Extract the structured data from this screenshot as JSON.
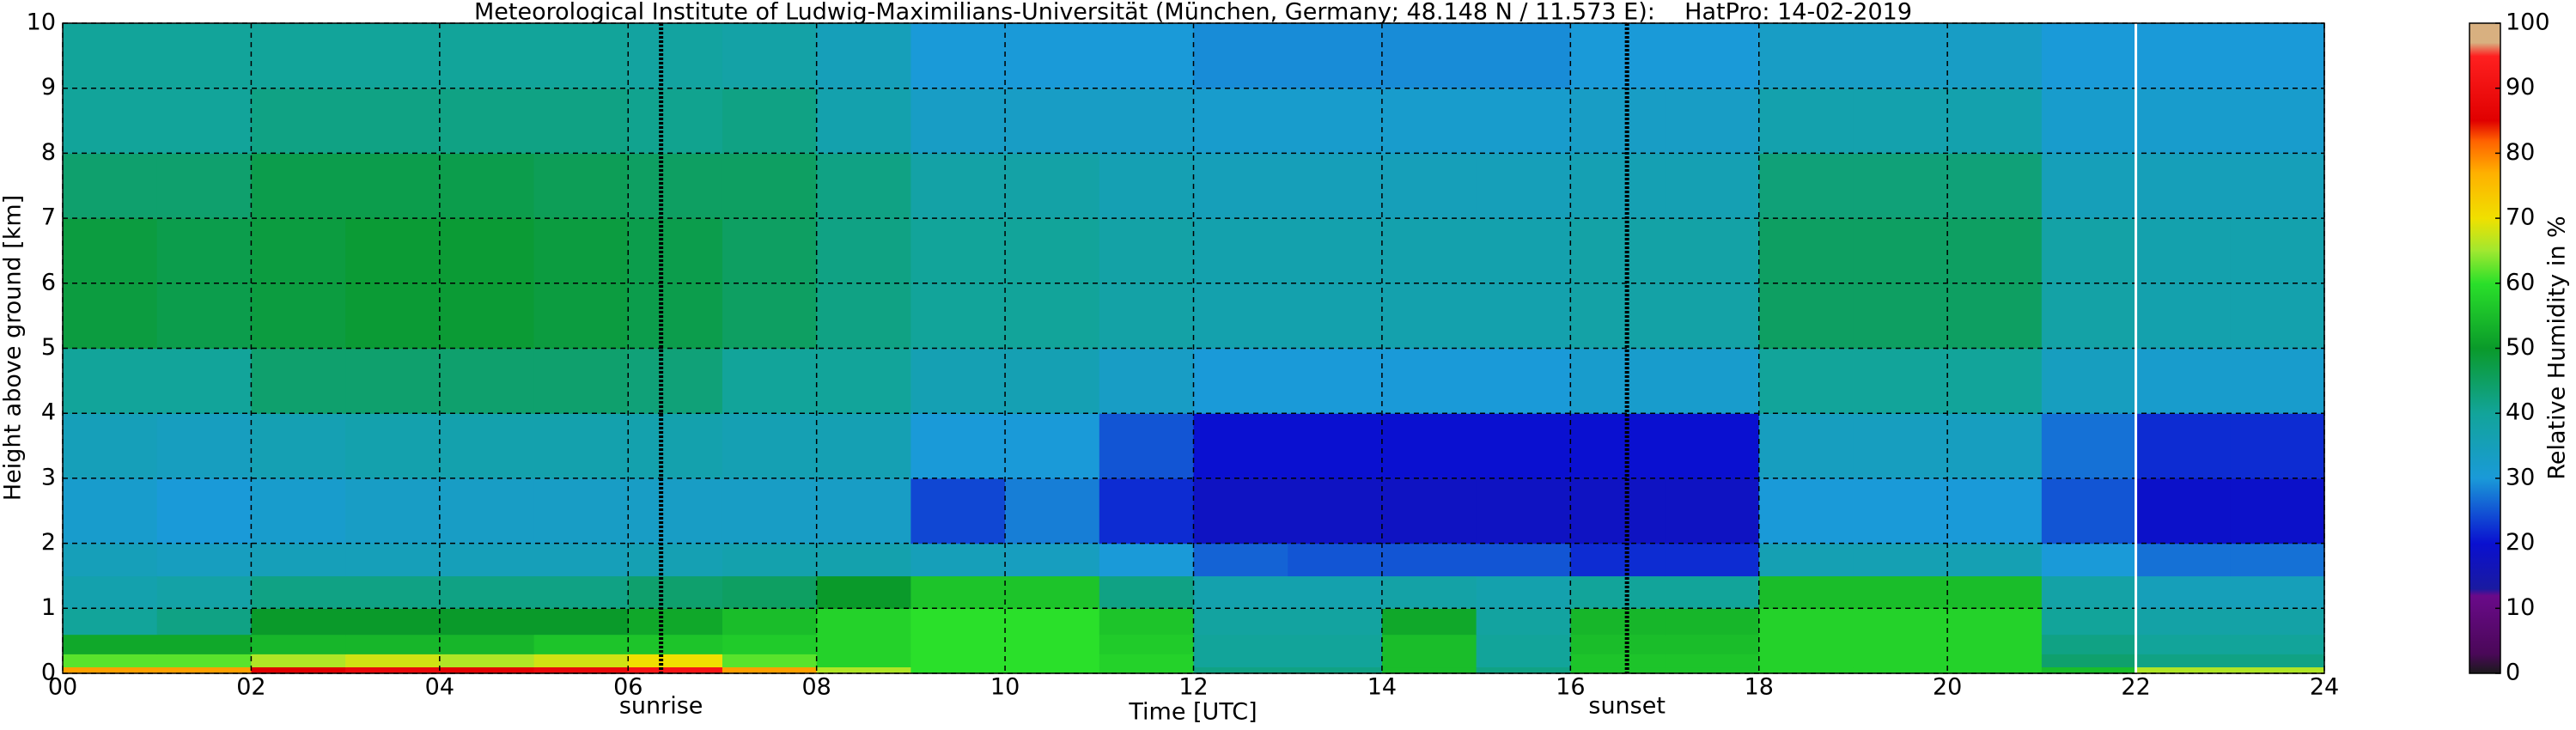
{
  "chart_data": {
    "type": "heatmap",
    "title": "Meteorological Institute of Ludwig-Maximilians-Universität (München, Germany; 48.148 N / 11.573 E):    HatPro: 14-02-2019",
    "x_label": "Time [UTC]",
    "y_label": "Height above ground [km]",
    "colorbar_label": "Relative Humidity in %",
    "x_edges": [
      0,
      1,
      2,
      3,
      4,
      5,
      6,
      7,
      8,
      9,
      10,
      11,
      12,
      13,
      14,
      15,
      16,
      17,
      18,
      19,
      20,
      21,
      22,
      23,
      24
    ],
    "y_edges": [
      0,
      0.1,
      0.3,
      0.6,
      1,
      1.5,
      2,
      3,
      4,
      5,
      7,
      8,
      9,
      10
    ],
    "z": [
      [
        78,
        78,
        85,
        88,
        86,
        88,
        92,
        78,
        66,
        60,
        60,
        58,
        42,
        42,
        55,
        42,
        56,
        56,
        58,
        58,
        58,
        55,
        66,
        66
      ],
      [
        62,
        62,
        66,
        68,
        66,
        68,
        70,
        62,
        58,
        60,
        60,
        58,
        40,
        40,
        55,
        40,
        56,
        56,
        58,
        58,
        58,
        44,
        42,
        42
      ],
      [
        52,
        52,
        54,
        54,
        54,
        56,
        56,
        57,
        58,
        60,
        60,
        57,
        40,
        40,
        55,
        40,
        55,
        55,
        58,
        58,
        58,
        42,
        40,
        40
      ],
      [
        40,
        42,
        50,
        50,
        50,
        50,
        52,
        55,
        58,
        60,
        60,
        56,
        39,
        39,
        52,
        39,
        54,
        54,
        58,
        58,
        58,
        40,
        38,
        38
      ],
      [
        37,
        38,
        42,
        42,
        42,
        42,
        44,
        45,
        50,
        56,
        56,
        42,
        37,
        37,
        38,
        37,
        40,
        40,
        55,
        55,
        55,
        38,
        35,
        35
      ],
      [
        35,
        34,
        35,
        35,
        35,
        35,
        36,
        37,
        37,
        35,
        34,
        30,
        26,
        25,
        25,
        25,
        22,
        22,
        36,
        36,
        36,
        30,
        27,
        27
      ],
      [
        32,
        30,
        32,
        33,
        33,
        33,
        33,
        33,
        33,
        24,
        28,
        22,
        18,
        18,
        18,
        18,
        18,
        18,
        30,
        30,
        30,
        25,
        19,
        19
      ],
      [
        35,
        34,
        36,
        37,
        37,
        37,
        37,
        36,
        36,
        30,
        30,
        25,
        20,
        20,
        20,
        20,
        20,
        20,
        34,
        34,
        34,
        27,
        22,
        22
      ],
      [
        40,
        40,
        44,
        44,
        44,
        44,
        43,
        40,
        40,
        36,
        36,
        33,
        30,
        30,
        30,
        30,
        32,
        32,
        40,
        40,
        40,
        34,
        32,
        32
      ],
      [
        48,
        47,
        48,
        49,
        49,
        48,
        47,
        45,
        42,
        40,
        40,
        38,
        37,
        37,
        37,
        37,
        38,
        38,
        45,
        45,
        45,
        38,
        37,
        37
      ],
      [
        44,
        44,
        47,
        47,
        47,
        46,
        45,
        45,
        42,
        38,
        38,
        36,
        35,
        35,
        35,
        35,
        36,
        36,
        43,
        43,
        43,
        35,
        35,
        35
      ],
      [
        40,
        40,
        42,
        42,
        42,
        42,
        41,
        42,
        37,
        33,
        33,
        33,
        32,
        32,
        32,
        32,
        33,
        33,
        37,
        37,
        37,
        32,
        32,
        32
      ],
      [
        40,
        40,
        40,
        40,
        40,
        40,
        39,
        38,
        35,
        30,
        30,
        30,
        29,
        29,
        29,
        29,
        30,
        30,
        33,
        33,
        33,
        30,
        30,
        30
      ]
    ],
    "xlim": [
      0,
      24
    ],
    "xticks": [
      {
        "value": 0,
        "label": "00"
      },
      {
        "value": 2,
        "label": "02"
      },
      {
        "value": 4,
        "label": "04"
      },
      {
        "value": 6,
        "label": "06"
      },
      {
        "value": 8,
        "label": "08"
      },
      {
        "value": 10,
        "label": "10"
      },
      {
        "value": 12,
        "label": "12"
      },
      {
        "value": 14,
        "label": "14"
      },
      {
        "value": 16,
        "label": "16"
      },
      {
        "value": 18,
        "label": "18"
      },
      {
        "value": 20,
        "label": "20"
      },
      {
        "value": 22,
        "label": "22"
      },
      {
        "value": 24,
        "label": "24"
      }
    ],
    "ylim": [
      0,
      10
    ],
    "yticks": [
      0,
      1,
      2,
      3,
      4,
      5,
      6,
      7,
      8,
      9,
      10
    ],
    "grid": true,
    "clim": [
      0,
      100
    ],
    "cticks": [
      0,
      10,
      20,
      30,
      40,
      50,
      60,
      70,
      80,
      90,
      100
    ],
    "colorscale": [
      [
        0,
        "#1a1a1a"
      ],
      [
        3,
        "#4a0858"
      ],
      [
        12,
        "#6a0a8a"
      ],
      [
        13,
        "#1a1aa0"
      ],
      [
        20,
        "#0a10d0"
      ],
      [
        30,
        "#1a9ad8"
      ],
      [
        40,
        "#12a49a"
      ],
      [
        50,
        "#0a9a2a"
      ],
      [
        60,
        "#2ae02a"
      ],
      [
        65,
        "#a0e830"
      ],
      [
        70,
        "#f0e000"
      ],
      [
        77,
        "#ffb000"
      ],
      [
        82,
        "#ff6000"
      ],
      [
        85,
        "#e00000"
      ],
      [
        95,
        "#ff2020"
      ],
      [
        97,
        "#d8b080"
      ],
      [
        100,
        "#d8b080"
      ]
    ],
    "annotations": [
      {
        "x": 6.35,
        "label": "sunrise"
      },
      {
        "x": 16.6,
        "label": "sunset"
      }
    ],
    "vline": {
      "x": 22,
      "color": "#ffffff"
    }
  }
}
